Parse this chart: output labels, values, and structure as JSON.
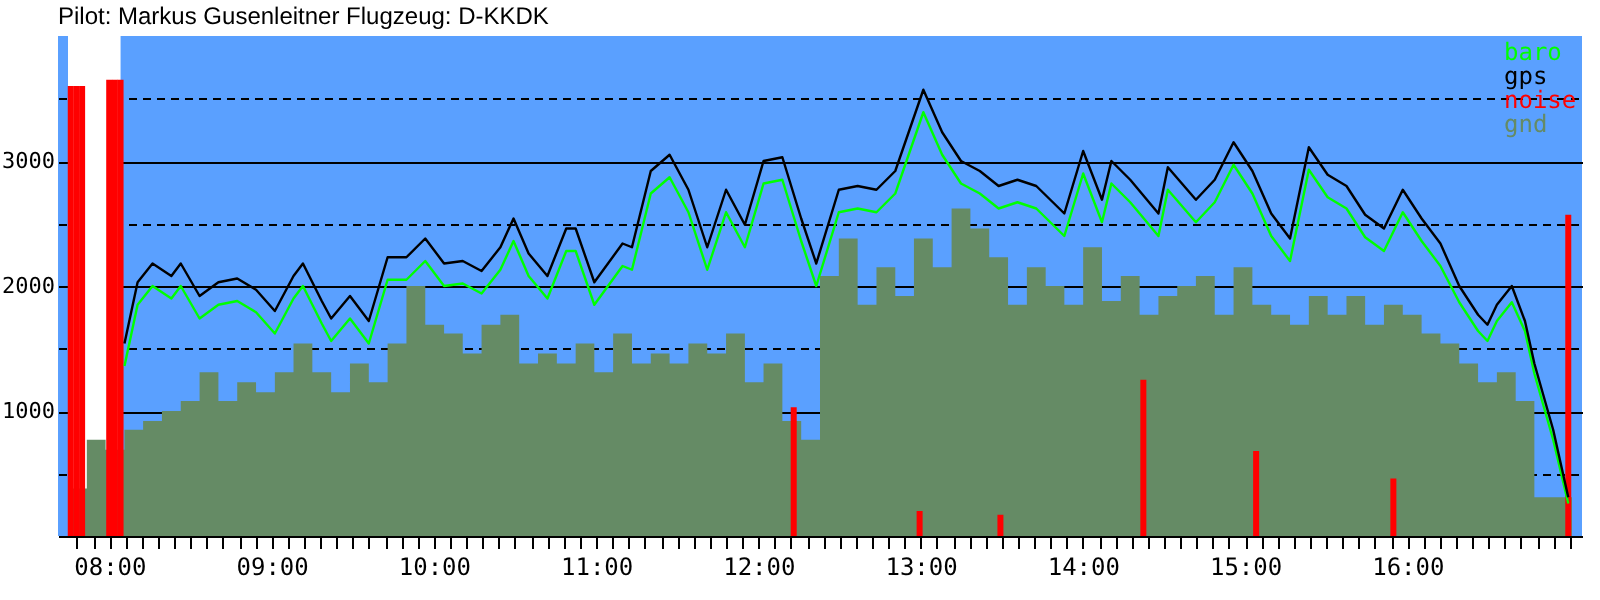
{
  "chart_data": {
    "type": "line",
    "title": "Pilot: Markus Gusenleitner Flugzeug: D-KKDK",
    "xlim": [
      7.745,
      17.015
    ],
    "ylim": [
      0,
      4000
    ],
    "yticks": [
      {
        "value": 500,
        "label": null
      },
      1000,
      {
        "value": 1500,
        "label": null
      },
      2000,
      {
        "value": 2500,
        "label": null
      },
      3000,
      {
        "value": 3500,
        "label": null
      }
    ],
    "xticks": [
      {
        "value": 7.8,
        "label": null
      },
      {
        "value": 7.9,
        "label": null
      },
      {
        "value": 8,
        "label": "08:00"
      },
      {
        "value": 8.1,
        "label": null
      },
      {
        "value": 8.2,
        "label": null
      },
      {
        "value": 8.3,
        "label": null
      },
      {
        "value": 8.4,
        "label": null
      },
      {
        "value": 8.5,
        "label": null
      },
      {
        "value": 8.6,
        "label": null
      },
      {
        "value": 8.7,
        "label": null
      },
      {
        "value": 8.8,
        "label": null
      },
      {
        "value": 8.9,
        "label": null
      },
      {
        "value": 9,
        "label": "09:00"
      },
      {
        "value": 9.1,
        "label": null
      },
      {
        "value": 9.2,
        "label": null
      },
      {
        "value": 9.3,
        "label": null
      },
      {
        "value": 9.4,
        "label": null
      },
      {
        "value": 9.5,
        "label": null
      },
      {
        "value": 9.6,
        "label": null
      },
      {
        "value": 9.7,
        "label": null
      },
      {
        "value": 9.8,
        "label": null
      },
      {
        "value": 9.9,
        "label": null
      },
      {
        "value": 10,
        "label": "10:00"
      },
      {
        "value": 10.1,
        "label": null
      },
      {
        "value": 10.2,
        "label": null
      },
      {
        "value": 10.3,
        "label": null
      },
      {
        "value": 10.4,
        "label": null
      },
      {
        "value": 10.5,
        "label": null
      },
      {
        "value": 10.6,
        "label": null
      },
      {
        "value": 10.7,
        "label": null
      },
      {
        "value": 10.8,
        "label": null
      },
      {
        "value": 10.9,
        "label": null
      },
      {
        "value": 11,
        "label": "11:00"
      },
      {
        "value": 11.1,
        "label": null
      },
      {
        "value": 11.2,
        "label": null
      },
      {
        "value": 11.3,
        "label": null
      },
      {
        "value": 11.4,
        "label": null
      },
      {
        "value": 11.5,
        "label": null
      },
      {
        "value": 11.6,
        "label": null
      },
      {
        "value": 11.7,
        "label": null
      },
      {
        "value": 11.8,
        "label": null
      },
      {
        "value": 11.9,
        "label": null
      },
      {
        "value": 12,
        "label": "12:00"
      },
      {
        "value": 12.1,
        "label": null
      },
      {
        "value": 12.2,
        "label": null
      },
      {
        "value": 12.3,
        "label": null
      },
      {
        "value": 12.4,
        "label": null
      },
      {
        "value": 12.5,
        "label": null
      },
      {
        "value": 12.6,
        "label": null
      },
      {
        "value": 12.7,
        "label": null
      },
      {
        "value": 12.8,
        "label": null
      },
      {
        "value": 12.9,
        "label": null
      },
      {
        "value": 13,
        "label": "13:00"
      },
      {
        "value": 13.1,
        "label": null
      },
      {
        "value": 13.2,
        "label": null
      },
      {
        "value": 13.3,
        "label": null
      },
      {
        "value": 13.4,
        "label": null
      },
      {
        "value": 13.5,
        "label": null
      },
      {
        "value": 13.6,
        "label": null
      },
      {
        "value": 13.7,
        "label": null
      },
      {
        "value": 13.8,
        "label": null
      },
      {
        "value": 13.9,
        "label": null
      },
      {
        "value": 14,
        "label": "14:00"
      },
      {
        "value": 14.1,
        "label": null
      },
      {
        "value": 14.2,
        "label": null
      },
      {
        "value": 14.3,
        "label": null
      },
      {
        "value": 14.4,
        "label": null
      },
      {
        "value": 14.5,
        "label": null
      },
      {
        "value": 14.6,
        "label": null
      },
      {
        "value": 14.7,
        "label": null
      },
      {
        "value": 14.8,
        "label": null
      },
      {
        "value": 14.9,
        "label": null
      },
      {
        "value": 15,
        "label": "15:00"
      },
      {
        "value": 15.1,
        "label": null
      },
      {
        "value": 15.2,
        "label": null
      },
      {
        "value": 15.3,
        "label": null
      },
      {
        "value": 15.4,
        "label": null
      },
      {
        "value": 15.5,
        "label": null
      },
      {
        "value": 15.6,
        "label": null
      },
      {
        "value": 15.7,
        "label": null
      },
      {
        "value": 15.8,
        "label": null
      },
      {
        "value": 15.9,
        "label": null
      },
      {
        "value": 16,
        "label": "16:00"
      },
      {
        "value": 16.1,
        "label": null
      },
      {
        "value": 16.2,
        "label": null
      },
      {
        "value": 16.3,
        "label": null
      },
      {
        "value": 16.4,
        "label": null
      },
      {
        "value": 16.5,
        "label": null
      },
      {
        "value": 16.6,
        "label": null
      },
      {
        "value": 16.7,
        "label": null
      },
      {
        "value": 16.8,
        "label": null
      },
      {
        "value": 16.9,
        "label": null
      },
      {
        "value": 17,
        "label": null
      }
    ],
    "grid": "y",
    "legend": "top right",
    "bands": [
      {
        "axis": "x",
        "from": 7.745,
        "to": 8.069,
        "color": "#ffffff"
      }
    ],
    "series": [
      {
        "name": "baro",
        "color": "#00ff00",
        "x": [
          8.093,
          8.174,
          8.266,
          8.382,
          8.44,
          8.556,
          8.672,
          8.788,
          8.904,
          9.02,
          9.135,
          9.193,
          9.309,
          9.367,
          9.483,
          9.599,
          9.715,
          9.831,
          9.947,
          10.063,
          10.178,
          10.294,
          10.41,
          10.491,
          10.584,
          10.7,
          10.816,
          10.874,
          10.989,
          11.163,
          11.221,
          11.337,
          11.453,
          11.569,
          11.685,
          11.801,
          11.917,
          12.032,
          12.148,
          12.264,
          12.357,
          12.496,
          12.612,
          12.728,
          12.844,
          13.017,
          13.133,
          13.249,
          13.365,
          13.481,
          13.597,
          13.713,
          13.886,
          14.002,
          14.118,
          14.176,
          14.292,
          14.466,
          14.524,
          14.697,
          14.813,
          14.929,
          15.045,
          15.161,
          15.277,
          15.393,
          15.509,
          15.625,
          15.74,
          15.856,
          15.972,
          16.088,
          16.204,
          16.32,
          16.436,
          16.494,
          16.552,
          16.644,
          16.725,
          16.783,
          16.899,
          16.992
        ],
        "values": [
          1360,
          1850,
          2000,
          1900,
          2000,
          1740,
          1850,
          1880,
          1790,
          1620,
          1900,
          2000,
          1700,
          1560,
          1740,
          1540,
          2050,
          2050,
          2200,
          2000,
          2020,
          1940,
          2130,
          2360,
          2080,
          1900,
          2280,
          2280,
          1850,
          2160,
          2130,
          2740,
          2870,
          2590,
          2130,
          2590,
          2310,
          2820,
          2850,
          2360,
          2000,
          2590,
          2620,
          2590,
          2740,
          3390,
          3050,
          2820,
          2740,
          2620,
          2670,
          2620,
          2400,
          2900,
          2510,
          2820,
          2670,
          2400,
          2770,
          2510,
          2670,
          2970,
          2740,
          2400,
          2200,
          2930,
          2710,
          2620,
          2390,
          2280,
          2590,
          2360,
          2160,
          1870,
          1640,
          1560,
          1720,
          1870,
          1640,
          1300,
          770,
          260
        ]
      },
      {
        "name": "gps",
        "color": "#000000",
        "x": [
          8.093,
          8.174,
          8.266,
          8.382,
          8.44,
          8.556,
          8.672,
          8.788,
          8.904,
          9.02,
          9.135,
          9.193,
          9.309,
          9.367,
          9.483,
          9.599,
          9.715,
          9.831,
          9.947,
          10.063,
          10.178,
          10.294,
          10.41,
          10.491,
          10.584,
          10.7,
          10.816,
          10.874,
          10.989,
          11.163,
          11.221,
          11.337,
          11.453,
          11.569,
          11.685,
          11.801,
          11.917,
          12.032,
          12.148,
          12.264,
          12.357,
          12.496,
          12.612,
          12.728,
          12.844,
          13.017,
          13.133,
          13.249,
          13.365,
          13.481,
          13.597,
          13.713,
          13.886,
          14.002,
          14.118,
          14.176,
          14.292,
          14.466,
          14.524,
          14.697,
          14.813,
          14.929,
          15.045,
          15.161,
          15.277,
          15.393,
          15.509,
          15.625,
          15.74,
          15.856,
          15.972,
          16.088,
          16.204,
          16.32,
          16.436,
          16.494,
          16.552,
          16.644,
          16.725,
          16.783,
          16.899,
          16.992
        ],
        "values": [
          1540,
          2030,
          2180,
          2080,
          2180,
          1920,
          2030,
          2060,
          1970,
          1800,
          2080,
          2180,
          1880,
          1740,
          1920,
          1720,
          2230,
          2230,
          2380,
          2180,
          2200,
          2120,
          2310,
          2540,
          2260,
          2080,
          2460,
          2460,
          2030,
          2340,
          2310,
          2920,
          3050,
          2770,
          2310,
          2770,
          2490,
          3000,
          3030,
          2540,
          2180,
          2770,
          2800,
          2770,
          2920,
          3570,
          3230,
          3000,
          2920,
          2800,
          2850,
          2800,
          2580,
          3080,
          2690,
          3000,
          2850,
          2580,
          2950,
          2690,
          2850,
          3150,
          2920,
          2580,
          2380,
          3110,
          2890,
          2800,
          2570,
          2460,
          2770,
          2540,
          2340,
          2000,
          1770,
          1690,
          1850,
          2000,
          1720,
          1380,
          850,
          310
        ]
      },
      {
        "name": "noise",
        "type": "bar",
        "color": "#ff0000",
        "x": [
          7.762,
          7.797,
          7.832,
          7.999,
          8.034,
          8.069,
          12.218,
          12.994,
          13.492,
          14.373,
          15.068,
          15.914,
          16.992
        ],
        "values": [
          3600,
          3600,
          3600,
          3650,
          3650,
          3650,
          1030,
          200,
          170,
          1250,
          680,
          460,
          2570
        ]
      },
      {
        "name": "gnd",
        "type": "area",
        "color": "#658b65",
        "x": [
          7.745,
          7.861,
          7.977,
          8.093,
          8.208,
          8.324,
          8.44,
          8.556,
          8.672,
          8.788,
          8.904,
          9.02,
          9.135,
          9.251,
          9.367,
          9.483,
          9.599,
          9.715,
          9.831,
          9.947,
          10.063,
          10.178,
          10.294,
          10.41,
          10.526,
          10.642,
          10.758,
          10.874,
          10.989,
          11.105,
          11.221,
          11.337,
          11.453,
          11.569,
          11.685,
          11.801,
          11.917,
          12.032,
          12.148,
          12.264,
          12.38,
          12.496,
          12.612,
          12.728,
          12.844,
          12.959,
          13.075,
          13.191,
          13.307,
          13.423,
          13.539,
          13.655,
          13.771,
          13.886,
          14.002,
          14.118,
          14.234,
          14.35,
          14.466,
          14.582,
          14.697,
          14.813,
          14.929,
          15.045,
          15.161,
          15.277,
          15.393,
          15.509,
          15.625,
          15.74,
          15.856,
          15.972,
          16.088,
          16.204,
          16.32,
          16.436,
          16.552,
          16.668,
          16.783,
          16.899,
          17.015
        ],
        "values": [
          380,
          770,
          690,
          850,
          920,
          1000,
          1080,
          1310,
          1080,
          1230,
          1150,
          1310,
          1540,
          1310,
          1150,
          1380,
          1230,
          1540,
          2000,
          1690,
          1620,
          1460,
          1690,
          1770,
          1380,
          1460,
          1380,
          1540,
          1310,
          1620,
          1380,
          1460,
          1380,
          1540,
          1460,
          1620,
          1230,
          1380,
          920,
          770,
          2080,
          2380,
          1850,
          2150,
          1920,
          2380,
          2150,
          2620,
          2460,
          2230,
          1850,
          2150,
          2000,
          1850,
          2310,
          1880,
          2080,
          1770,
          1920,
          2000,
          2080,
          1770,
          2150,
          1850,
          1770,
          1690,
          1920,
          1770,
          1920,
          1690,
          1850,
          1770,
          1620,
          1540,
          1380,
          1230,
          1310,
          1080,
          310,
          310,
          230
        ]
      }
    ]
  }
}
